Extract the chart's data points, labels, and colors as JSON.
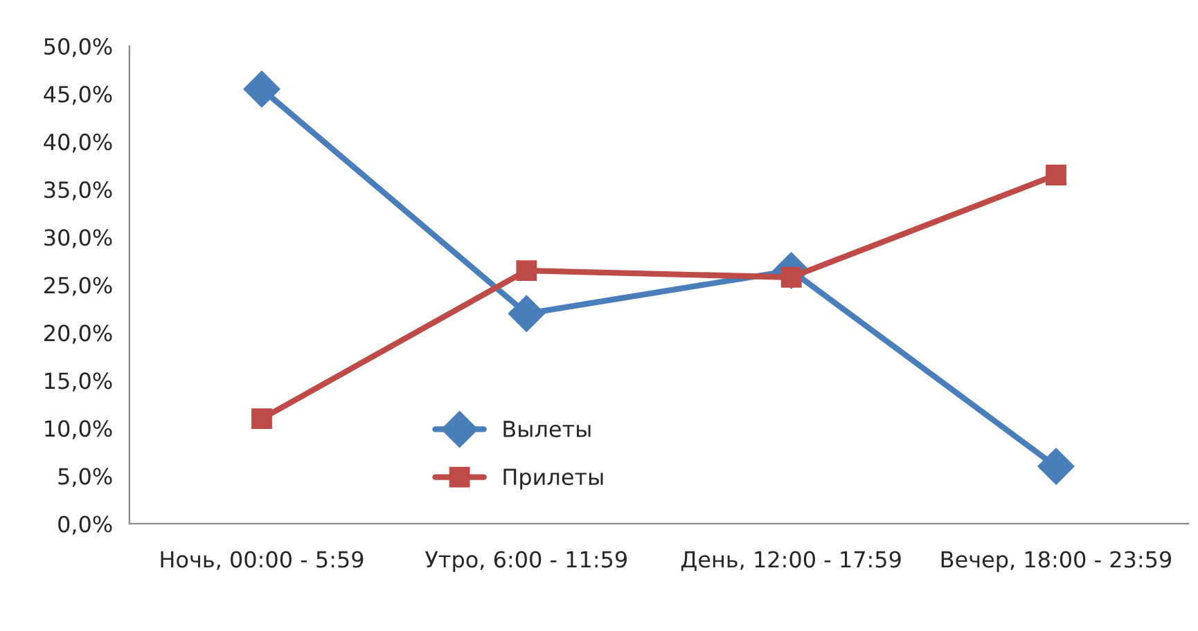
{
  "chart_data": {
    "type": "line",
    "categories": [
      "Ночь, 00:00 - 5:59",
      "Утро, 6:00 - 11:59",
      "День, 12:00 - 17:59",
      "Вечер, 18:00 - 23:59"
    ],
    "series": [
      {
        "name": "Вылеты",
        "color": "#4a7ebb",
        "marker": "diamond",
        "values": [
          45.5,
          22.0,
          26.5,
          6.0
        ]
      },
      {
        "name": "Прилеты",
        "color": "#be4b48",
        "marker": "square",
        "values": [
          11.0,
          26.5,
          25.8,
          36.5
        ]
      }
    ],
    "ylim": [
      0,
      50
    ],
    "yticks": [
      {
        "value": 0,
        "label": "0,0%"
      },
      {
        "value": 5,
        "label": "5,0%"
      },
      {
        "value": 10,
        "label": "10,0%"
      },
      {
        "value": 15,
        "label": "15,0%"
      },
      {
        "value": 20,
        "label": "20,0%"
      },
      {
        "value": 25,
        "label": "25,0%"
      },
      {
        "value": 30,
        "label": "30,0%"
      },
      {
        "value": 35,
        "label": "35,0%"
      },
      {
        "value": 40,
        "label": "40,0%"
      },
      {
        "value": 45,
        "label": "45,0%"
      },
      {
        "value": 50,
        "label": "50,0%"
      }
    ],
    "grid": false,
    "legend": "bottom",
    "line_style": "solid"
  }
}
